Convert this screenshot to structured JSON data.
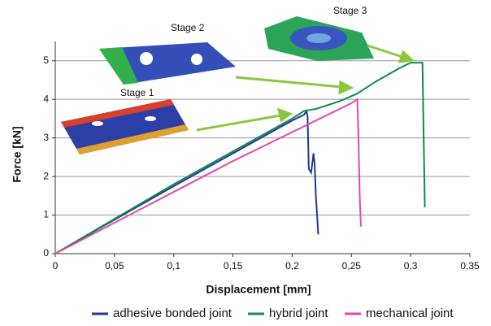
{
  "chart_data": {
    "type": "line",
    "x_label": "Displacement [mm]",
    "y_label": "Force [kN]",
    "xlim": [
      0,
      0.35
    ],
    "xticks": [
      0,
      {
        "value": 0.05,
        "label": "0,05"
      },
      {
        "value": 0.1,
        "label": "0,1"
      },
      {
        "value": 0.15,
        "label": "0,15"
      },
      {
        "value": 0.2,
        "label": "0,2"
      },
      {
        "value": 0.25,
        "label": "0,25"
      },
      {
        "value": 0.3,
        "label": "0,3"
      },
      {
        "value": 0.35,
        "label": "0,35"
      }
    ],
    "ylim": [
      0,
      5.5
    ],
    "yticks": [
      0,
      1,
      2,
      3,
      4,
      5
    ],
    "grid": true,
    "legend": "bottom",
    "annotations": [
      {
        "text": "Stage 1"
      },
      {
        "text": "Stage 2"
      },
      {
        "text": "Stage 3"
      }
    ],
    "series": [
      {
        "name": "adhesive bonded joint",
        "color": "#23379a",
        "x": [
          0,
          0.05,
          0.1,
          0.15,
          0.2,
          0.21,
          0.212,
          0.213,
          0.214,
          0.216,
          0.218,
          0.219,
          0.22,
          0.222
        ],
        "values": [
          0,
          0.88,
          1.75,
          2.6,
          3.45,
          3.6,
          3.7,
          3.55,
          2.2,
          2.1,
          2.6,
          2.3,
          1.5,
          0.5
        ]
      },
      {
        "name": "hybrid joint",
        "color": "#12894a",
        "x": [
          0,
          0.05,
          0.1,
          0.15,
          0.2,
          0.21,
          0.22,
          0.24,
          0.255,
          0.27,
          0.29,
          0.3,
          0.305,
          0.31,
          0.311,
          0.312
        ],
        "values": [
          0,
          0.9,
          1.8,
          2.65,
          3.5,
          3.7,
          3.75,
          3.95,
          4.15,
          4.45,
          4.8,
          4.95,
          4.95,
          4.95,
          3.0,
          1.2
        ]
      },
      {
        "name": "mechanical joint",
        "color": "#e04aa8",
        "x": [
          0,
          0.05,
          0.1,
          0.15,
          0.2,
          0.25,
          0.255,
          0.256,
          0.257,
          0.258
        ],
        "values": [
          0,
          0.8,
          1.6,
          2.4,
          3.15,
          3.9,
          4.0,
          3.0,
          1.5,
          0.7
        ]
      }
    ]
  }
}
